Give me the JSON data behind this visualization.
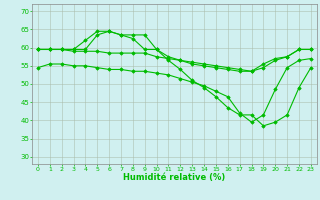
{
  "x": [
    0,
    1,
    2,
    3,
    4,
    5,
    6,
    7,
    8,
    9,
    10,
    11,
    12,
    13,
    14,
    15,
    16,
    17,
    18,
    19,
    20,
    21,
    22,
    23
  ],
  "line1": [
    54.5,
    55.5,
    55.5,
    55.0,
    55.0,
    54.5,
    54.0,
    54.0,
    53.5,
    53.5,
    53.0,
    52.5,
    51.5,
    50.5,
    49.5,
    48.0,
    46.5,
    42.0,
    39.5,
    41.5,
    48.5,
    54.5,
    56.5,
    57.0
  ],
  "line2": [
    59.5,
    59.5,
    59.5,
    59.0,
    59.0,
    59.0,
    58.5,
    58.5,
    58.5,
    58.5,
    57.5,
    57.0,
    56.5,
    56.0,
    55.5,
    55.0,
    54.5,
    54.0,
    53.5,
    54.5,
    56.5,
    57.5,
    59.5,
    59.5
  ],
  "line3": [
    59.5,
    59.5,
    59.5,
    59.5,
    59.5,
    63.5,
    64.5,
    63.5,
    63.5,
    63.5,
    59.5,
    56.5,
    54.0,
    51.0,
    49.0,
    46.5,
    43.5,
    41.5,
    41.5,
    38.5,
    39.5,
    41.5,
    49.0,
    54.5
  ],
  "line4": [
    59.5,
    59.5,
    59.5,
    59.5,
    62.0,
    64.5,
    64.5,
    63.5,
    62.5,
    59.5,
    59.5,
    57.5,
    56.5,
    55.5,
    55.0,
    54.5,
    54.0,
    53.5,
    53.5,
    55.5,
    57.0,
    57.5,
    59.5,
    59.5
  ],
  "line_color": "#00bb00",
  "bg_color": "#d0f0f0",
  "grid_color": "#aabbaa",
  "xlabel": "Humidité relative (%)",
  "ylim": [
    28,
    72
  ],
  "xlim": [
    -0.5,
    23.5
  ],
  "yticks": [
    30,
    35,
    40,
    45,
    50,
    55,
    60,
    65,
    70
  ],
  "xticks": [
    0,
    1,
    2,
    3,
    4,
    5,
    6,
    7,
    8,
    9,
    10,
    11,
    12,
    13,
    14,
    15,
    16,
    17,
    18,
    19,
    20,
    21,
    22,
    23
  ]
}
